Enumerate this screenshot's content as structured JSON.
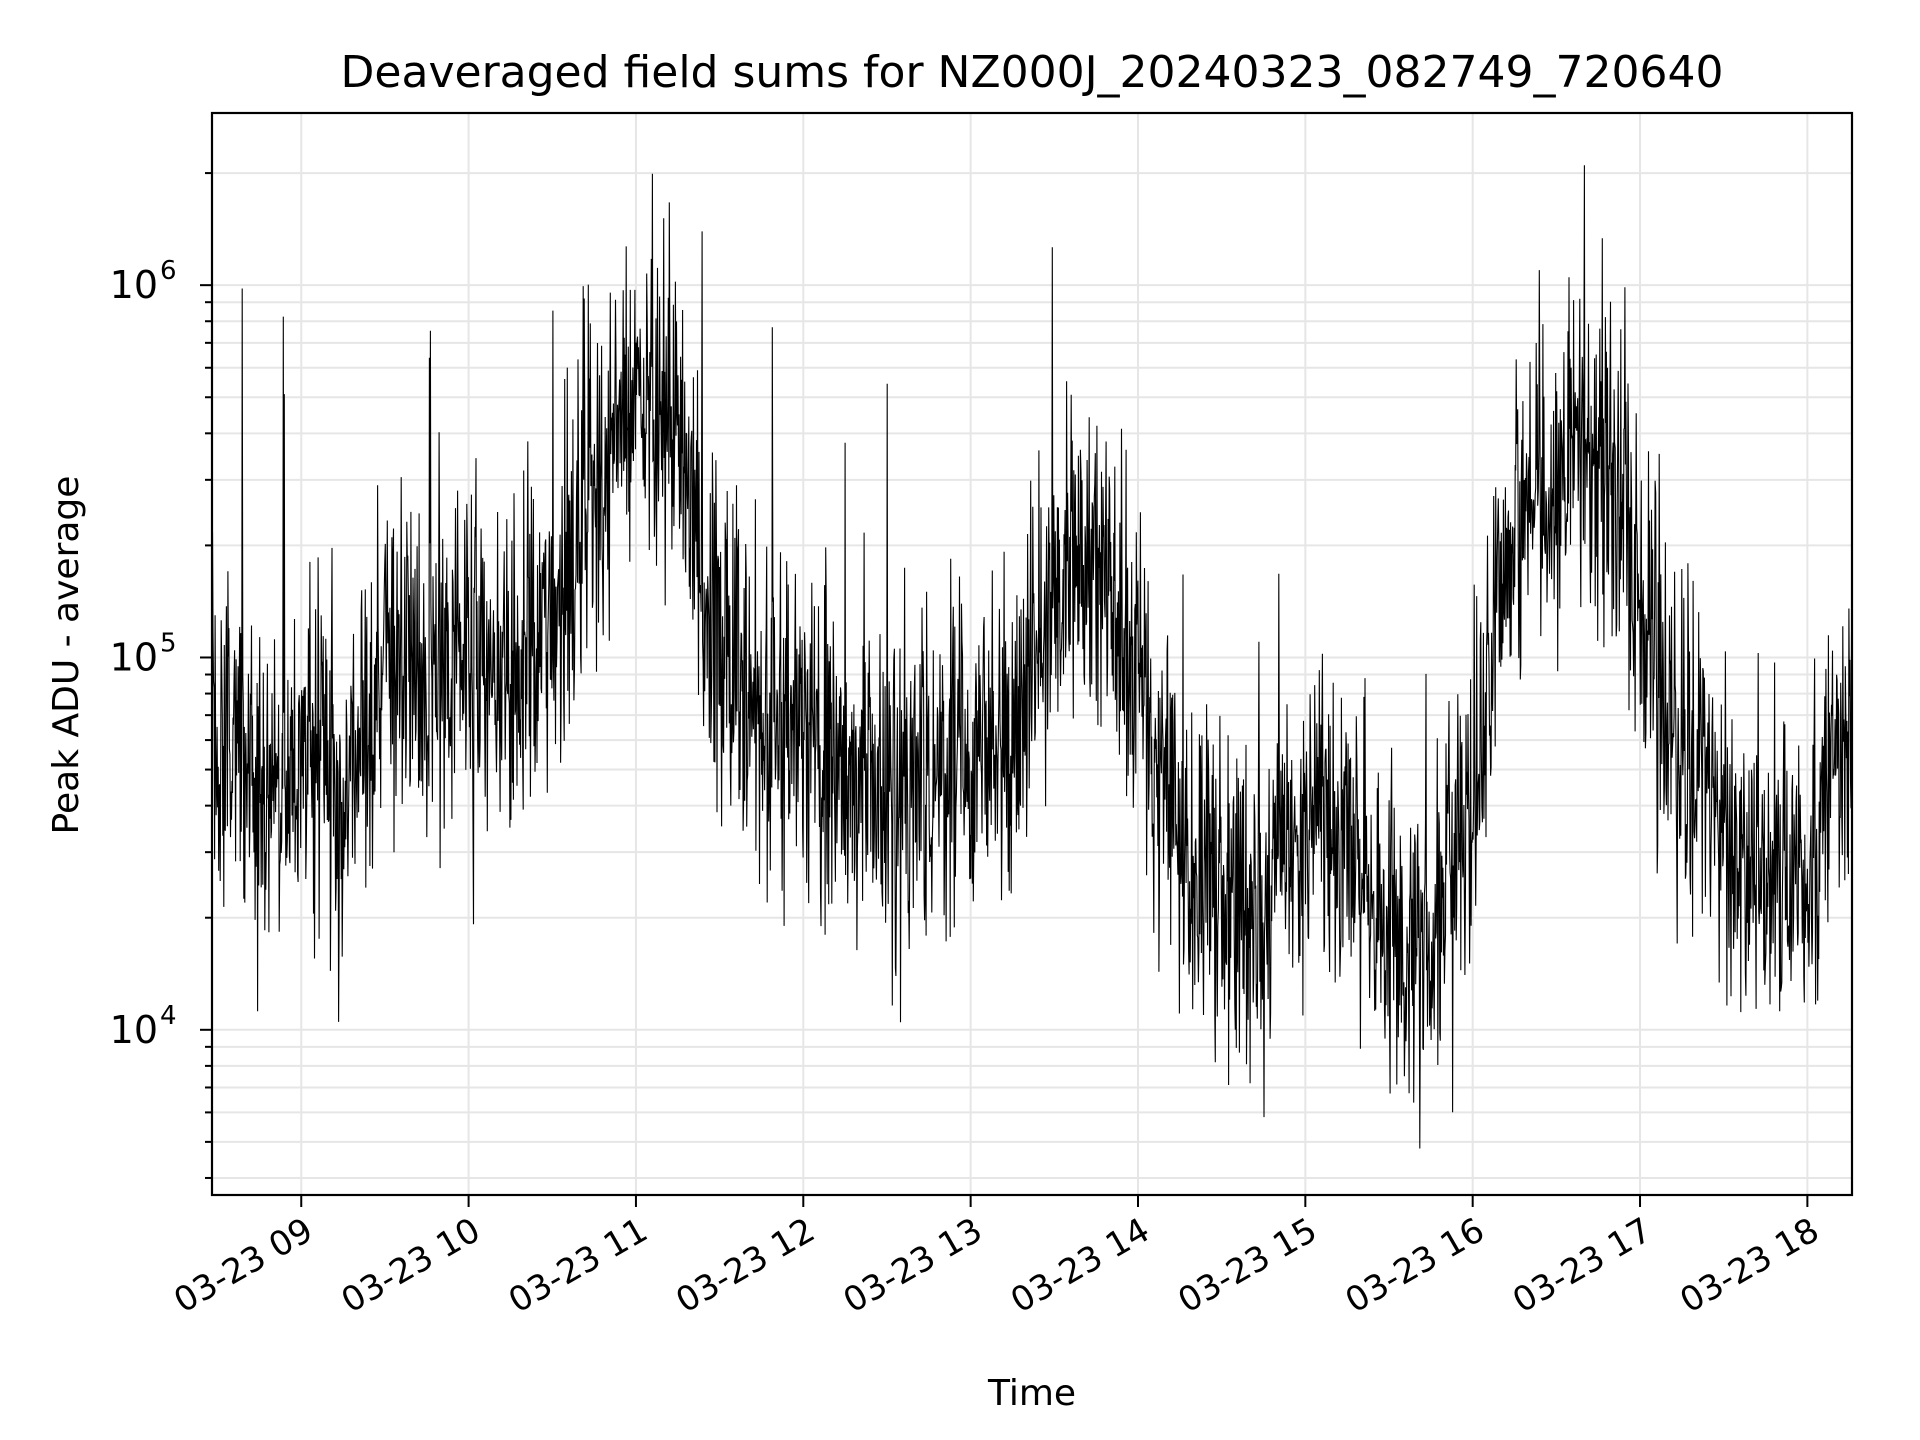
{
  "chart_data": {
    "type": "line",
    "title": "Deaveraged field sums for NZ000J_20240323_082749_720640",
    "xlabel": "Time",
    "ylabel": "Peak ADU - average",
    "yscale": "log",
    "ylim": [
      3600,
      2900000
    ],
    "xlim": [
      "2024-03-23 08:28",
      "2024-03-23 18:16"
    ],
    "grid": true,
    "x_ticks": [
      {
        "value": "2024-03-23 09:00",
        "label": "03-23 09"
      },
      {
        "value": "2024-03-23 10:00",
        "label": "03-23 10"
      },
      {
        "value": "2024-03-23 11:00",
        "label": "03-23 11"
      },
      {
        "value": "2024-03-23 12:00",
        "label": "03-23 12"
      },
      {
        "value": "2024-03-23 13:00",
        "label": "03-23 13"
      },
      {
        "value": "2024-03-23 14:00",
        "label": "03-23 14"
      },
      {
        "value": "2024-03-23 15:00",
        "label": "03-23 15"
      },
      {
        "value": "2024-03-23 16:00",
        "label": "03-23 16"
      },
      {
        "value": "2024-03-23 17:00",
        "label": "03-23 17"
      },
      {
        "value": "2024-03-23 18:00",
        "label": "03-23 18"
      }
    ],
    "y_ticks": [
      {
        "value": 10000,
        "base": "10",
        "exp": "4"
      },
      {
        "value": 100000,
        "base": "10",
        "exp": "5"
      },
      {
        "value": 1000000,
        "base": "10",
        "exp": "6"
      }
    ],
    "series": [
      {
        "color": "#000000",
        "x": [
          "2024-03-23 08:30",
          "2024-03-23 08:45",
          "2024-03-23 09:00",
          "2024-03-23 09:15",
          "2024-03-23 09:30",
          "2024-03-23 09:45",
          "2024-03-23 10:00",
          "2024-03-23 10:15",
          "2024-03-23 10:30",
          "2024-03-23 10:45",
          "2024-03-23 11:00",
          "2024-03-23 11:15",
          "2024-03-23 11:30",
          "2024-03-23 11:45",
          "2024-03-23 12:00",
          "2024-03-23 12:15",
          "2024-03-23 12:30",
          "2024-03-23 12:45",
          "2024-03-23 13:00",
          "2024-03-23 13:15",
          "2024-03-23 13:30",
          "2024-03-23 13:45",
          "2024-03-23 14:00",
          "2024-03-23 14:15",
          "2024-03-23 14:30",
          "2024-03-23 14:45",
          "2024-03-23 15:00",
          "2024-03-23 15:15",
          "2024-03-23 15:30",
          "2024-03-23 15:45",
          "2024-03-23 16:00",
          "2024-03-23 16:15",
          "2024-03-23 16:30",
          "2024-03-23 16:45",
          "2024-03-23 17:00",
          "2024-03-23 17:15",
          "2024-03-23 17:30",
          "2024-03-23 17:45",
          "2024-03-23 18:00",
          "2024-03-23 18:15"
        ],
        "y": [
          60000,
          45000,
          50000,
          40000,
          110000,
          100000,
          90000,
          80000,
          110000,
          300000,
          500000,
          400000,
          90000,
          70000,
          60000,
          50000,
          45000,
          45000,
          50000,
          60000,
          150000,
          180000,
          90000,
          30000,
          22000,
          20000,
          35000,
          35000,
          18000,
          16000,
          40000,
          250000,
          350000,
          400000,
          150000,
          60000,
          35000,
          25000,
          30000,
          70000
        ]
      }
    ]
  }
}
